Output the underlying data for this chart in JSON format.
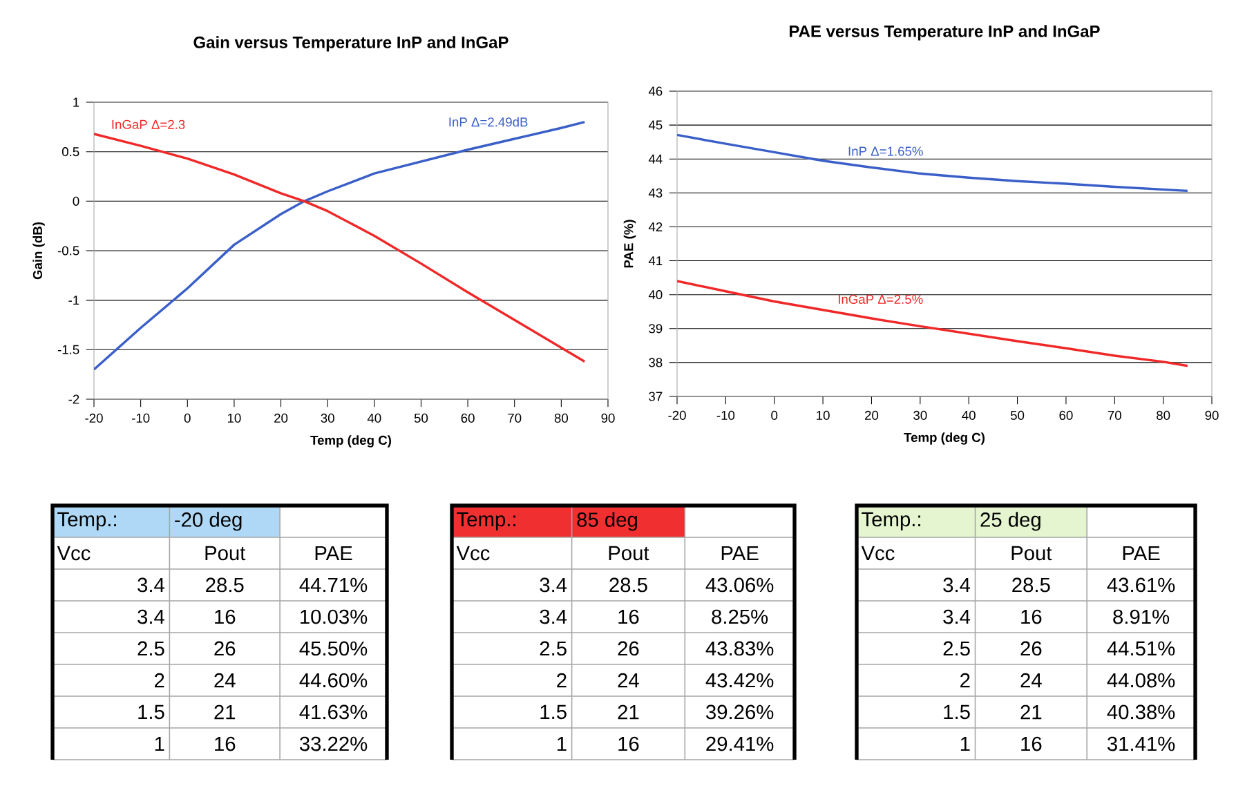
{
  "chart_data": [
    {
      "type": "line",
      "title": "Gain versus Temperature InP and InGaP",
      "xlabel": "Temp (deg C)",
      "ylabel": "Gain (dB)",
      "xlim": [
        -20,
        90
      ],
      "ylim": [
        -2,
        1
      ],
      "xticks": [
        -20,
        -10,
        0,
        10,
        20,
        30,
        40,
        50,
        60,
        70,
        80,
        90
      ],
      "yticks": [
        -2,
        -1.5,
        -1,
        -0.5,
        0,
        0.5,
        1
      ],
      "grid": "y",
      "legend": false,
      "x": [
        -20,
        -10,
        0,
        10,
        20,
        25,
        30,
        40,
        50,
        60,
        70,
        80,
        85
      ],
      "series": [
        {
          "name": "InP Δ=2.49dB",
          "color": "#3a5fc8",
          "values": [
            -1.7,
            -1.28,
            -0.88,
            -0.44,
            -0.13,
            0,
            0.1,
            0.28,
            0.4,
            0.52,
            0.63,
            0.74,
            0.8
          ]
        },
        {
          "name": "InGaP Δ=2.3",
          "color": "#f02828",
          "values": [
            0.68,
            0.56,
            0.43,
            0.27,
            0.08,
            0,
            -0.1,
            -0.35,
            -0.63,
            -0.92,
            -1.2,
            -1.48,
            -1.62
          ]
        }
      ]
    },
    {
      "type": "line",
      "title": "PAE versus Temperature InP and InGaP",
      "xlabel": "Temp (deg C)",
      "ylabel": "PAE (%)",
      "xlim": [
        -20,
        90
      ],
      "ylim": [
        37,
        46
      ],
      "xticks": [
        -20,
        -10,
        0,
        10,
        20,
        30,
        40,
        50,
        60,
        70,
        80,
        90
      ],
      "yticks": [
        37,
        38,
        39,
        40,
        41,
        42,
        43,
        44,
        45,
        46
      ],
      "grid": "y",
      "legend": false,
      "x": [
        -20,
        -10,
        0,
        10,
        20,
        30,
        40,
        50,
        60,
        70,
        80,
        85
      ],
      "series": [
        {
          "name": "InP Δ=1.65%",
          "color": "#3a5fc8",
          "values": [
            44.71,
            44.45,
            44.2,
            43.95,
            43.75,
            43.57,
            43.45,
            43.35,
            43.27,
            43.18,
            43.1,
            43.06
          ]
        },
        {
          "name": "InGaP Δ=2.5%",
          "color": "#f02828",
          "values": [
            40.4,
            40.1,
            39.8,
            39.55,
            39.3,
            39.07,
            38.85,
            38.63,
            38.42,
            38.2,
            38.02,
            37.9
          ]
        }
      ]
    },
    {
      "type": "other",
      "color": "#aed8f5",
      "annotations": [
        "Temp.:",
        "-20 deg",
        "Vcc",
        "Pout",
        "PAE",
        "3.4",
        "28.5",
        "44.71%",
        "3.4",
        "16",
        "10.03%",
        "2.5",
        "26",
        "45.50%",
        "2",
        "24",
        "44.60%",
        "1.5",
        "21",
        "41.63%",
        "1",
        "16",
        "33.22%"
      ]
    },
    {
      "type": "other",
      "color": "#f03030",
      "annotations": [
        "Temp.:",
        "85 deg",
        "Vcc",
        "Pout",
        "PAE",
        "3.4",
        "28.5",
        "43.06%",
        "3.4",
        "16",
        "8.25%",
        "2.5",
        "26",
        "43.83%",
        "2",
        "24",
        "43.42%",
        "1.5",
        "21",
        "39.26%",
        "1",
        "16",
        "29.41%"
      ]
    },
    {
      "type": "other",
      "color": "#e4f5cf",
      "annotations": [
        "Temp.:",
        "25 deg",
        "Vcc",
        "Pout",
        "PAE",
        "3.4",
        "28.5",
        "43.61%",
        "3.4",
        "16",
        "8.91%",
        "2.5",
        "26",
        "44.51%",
        "2",
        "24",
        "44.08%",
        "1.5",
        "21",
        "40.38%",
        "1",
        "16",
        "31.41%"
      ]
    }
  ]
}
